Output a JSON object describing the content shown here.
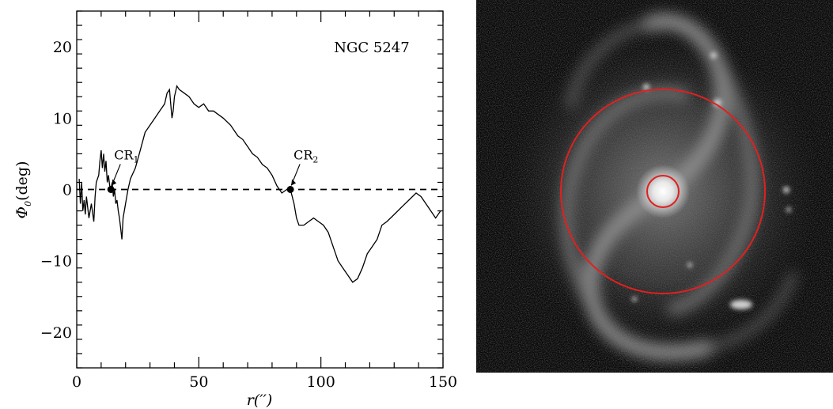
{
  "chart_data": {
    "type": "line",
    "title": "NGC 5247",
    "xlabel": "r(′′)",
    "ylabel": "Φ",
    "ylabel_subscript": "0",
    "ylabel_suffix": "(deg)",
    "xlim": [
      0,
      150
    ],
    "ylim": [
      -25,
      25
    ],
    "xticks": [
      0,
      50,
      100,
      150
    ],
    "yticks": [
      -20,
      -10,
      0,
      10,
      20
    ],
    "reference_line": {
      "y": 0,
      "style": "dashed"
    },
    "series": [
      {
        "x": [
          1,
          1.5,
          2,
          2.5,
          3,
          3.5,
          4,
          5,
          6,
          7,
          7.5,
          8,
          9,
          9.5,
          10,
          10.5,
          11,
          11.5,
          12,
          12.5,
          13,
          13.5,
          14,
          14.5,
          15,
          15.5,
          16,
          16.5,
          17,
          17.5,
          18,
          18.5,
          19,
          20,
          21,
          22,
          24,
          26,
          28,
          30,
          32,
          34,
          36,
          37,
          38,
          38.5,
          39,
          39.5,
          40,
          41,
          42,
          44,
          46,
          48,
          50,
          52,
          54,
          56,
          58,
          60,
          63,
          66,
          68,
          70,
          72,
          74,
          76,
          78,
          80,
          82,
          84,
          86,
          87.5,
          89,
          90,
          91,
          93,
          95,
          97,
          99,
          101,
          103,
          105,
          107,
          109,
          111,
          113,
          115,
          117,
          119,
          121,
          123,
          125,
          127,
          130,
          133,
          136,
          139,
          141,
          143,
          145,
          147,
          149
        ],
        "y": [
          1.5,
          -2,
          1,
          -3,
          -1.5,
          -3.5,
          -1,
          -4,
          -2,
          -4.5,
          -1,
          1,
          2,
          4,
          5.5,
          3,
          5,
          2.5,
          4,
          1,
          2,
          0.5,
          0,
          1,
          -1,
          0,
          -2,
          -1.5,
          -3,
          -4,
          -5.5,
          -7,
          -4,
          -2,
          0,
          1.5,
          3,
          5.5,
          8,
          9,
          10,
          11,
          12,
          13.5,
          14,
          12,
          10,
          11,
          13,
          14.5,
          14,
          13.5,
          13,
          12,
          11.5,
          12,
          11,
          11,
          10.5,
          10,
          9,
          7.5,
          7,
          6,
          5,
          4.5,
          3.5,
          3,
          2,
          0.5,
          -0.5,
          0,
          0,
          -2,
          -4,
          -5,
          -5,
          -4.5,
          -4,
          -4.5,
          -5,
          -6,
          -8,
          -10,
          -11,
          -12,
          -13,
          -12.5,
          -11,
          -9,
          -8,
          -7,
          -5,
          -4.5,
          -3.5,
          -2.5,
          -1.5,
          -0.5,
          -1,
          -2,
          -3,
          -4,
          -3
        ]
      }
    ],
    "annotations": [
      {
        "label": "CR",
        "subscript": "1",
        "point": [
          14,
          0
        ]
      },
      {
        "label": "CR",
        "subscript": "2",
        "point": [
          87.5,
          0
        ]
      }
    ]
  },
  "image_panel": {
    "background": "#080808",
    "ring_color": "#e02020"
  }
}
